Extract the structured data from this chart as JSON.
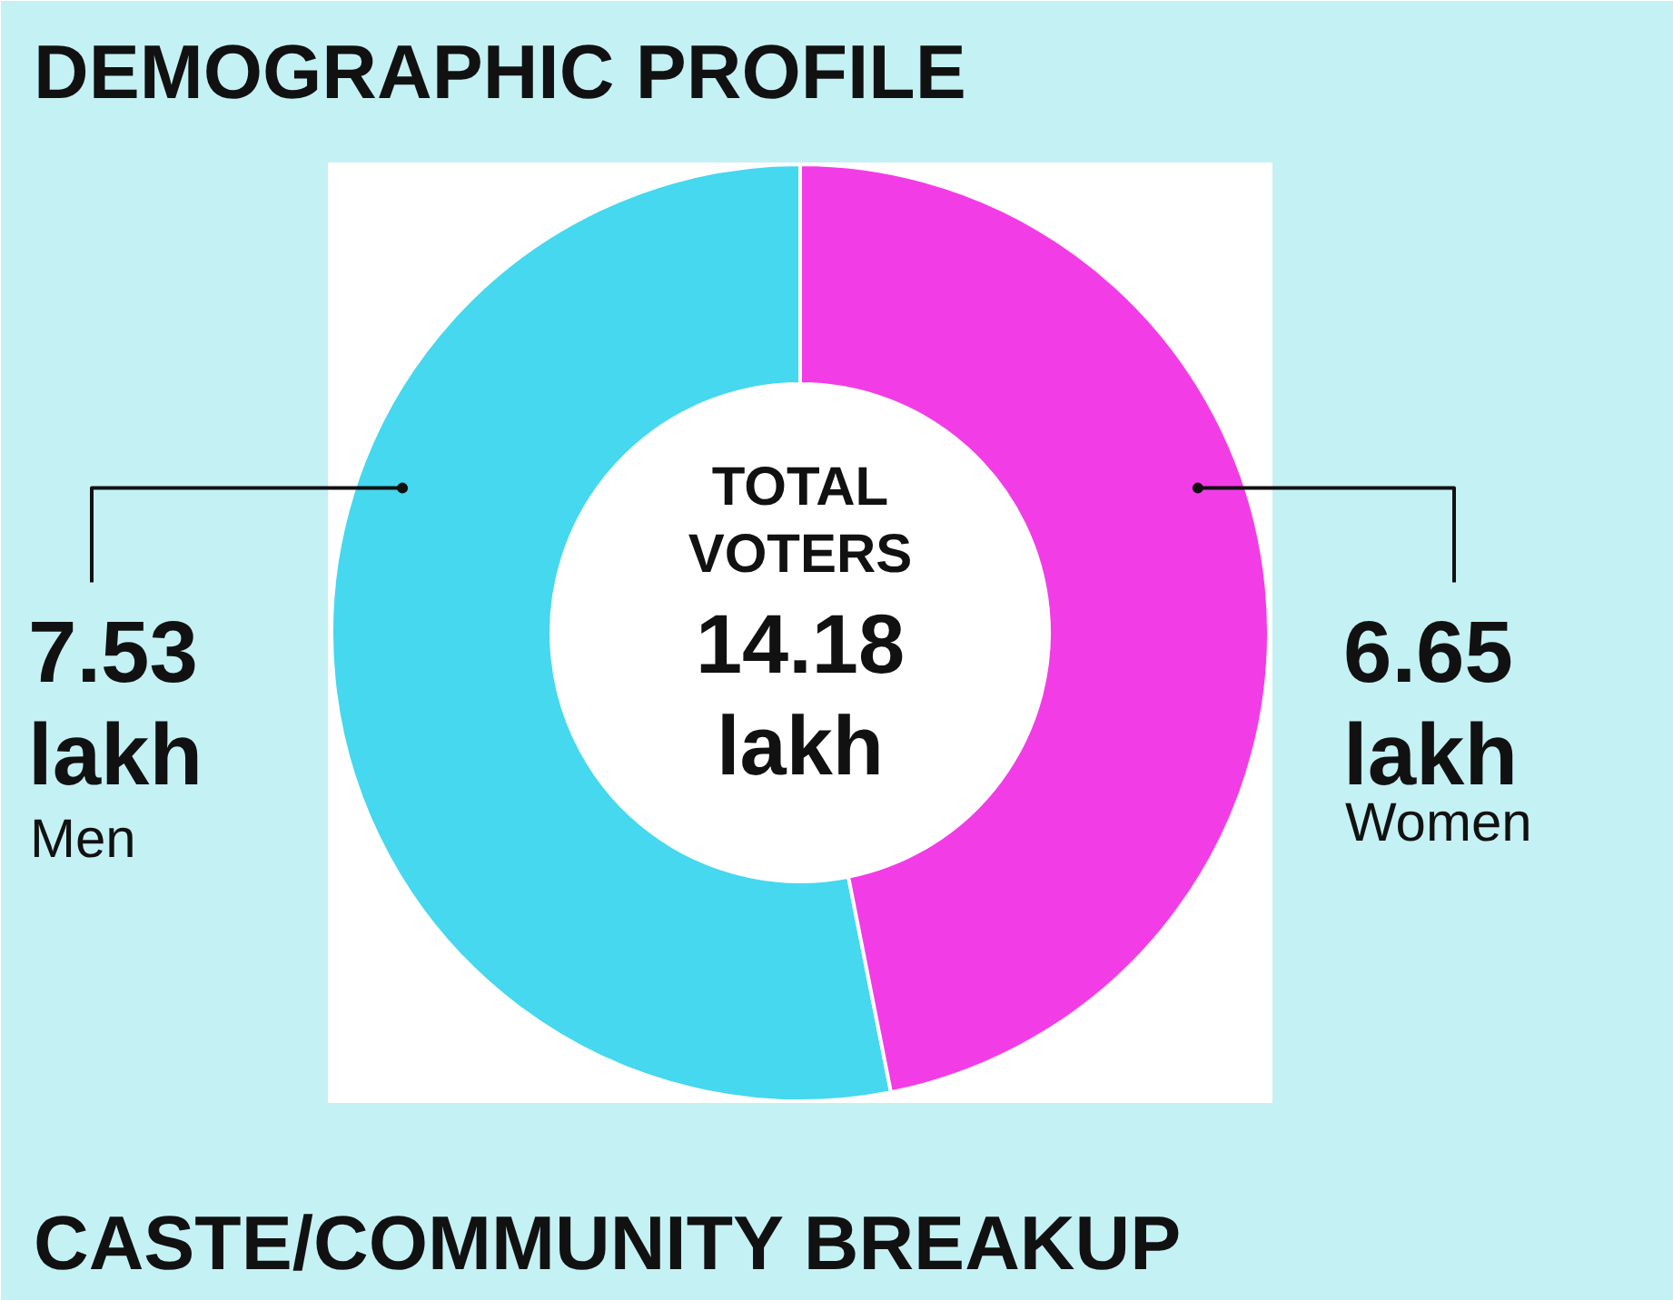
{
  "chart_data": {
    "type": "donut",
    "title": "DEMOGRAPHIC PROFILE",
    "categories": [
      "Men",
      "Women"
    ],
    "values": [
      7.53,
      6.65
    ],
    "colors": [
      "#45d8ef",
      "#f23de6"
    ],
    "value_labels": [
      "7.53 lakh",
      "6.65 lakh"
    ],
    "annotations": [
      "TOTAL VOTERS",
      "14.18 lakh",
      "CASTE/COMMUNITY BREAKUP"
    ]
  }
}
